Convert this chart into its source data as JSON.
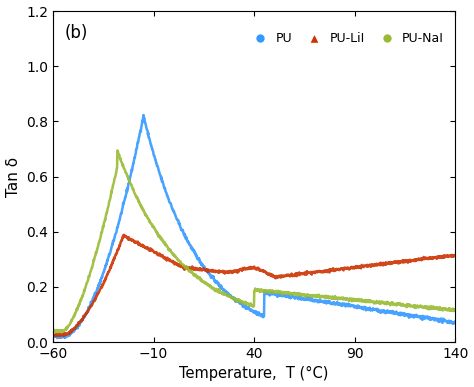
{
  "title": "(b)",
  "xlabel": "Temperature,  T (°C)",
  "ylabel": "Tan δ",
  "xlim": [
    -60,
    140
  ],
  "ylim": [
    0,
    1.2
  ],
  "xticks": [
    -60,
    -10,
    40,
    90,
    140
  ],
  "yticks": [
    0.0,
    0.2,
    0.4,
    0.6,
    0.8,
    1.0,
    1.2
  ],
  "pu_color": "#3399FF",
  "pului_color": "#CC3300",
  "punai_color": "#99BB33",
  "background_color": "#ffffff",
  "legend_labels": [
    "PU",
    "PU-LiI",
    "PU-NaI"
  ]
}
